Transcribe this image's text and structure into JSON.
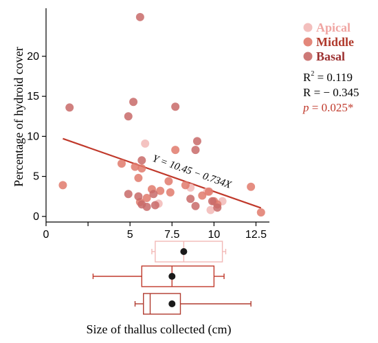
{
  "chart_data": {
    "type": "scatter",
    "xlabel": "Size of thallus collected (cm)",
    "ylabel": "Percentage of hydroid cover",
    "xlim": [
      0,
      13.3
    ],
    "ylim": [
      -0.7,
      26
    ],
    "xticks": [
      0,
      2.5,
      5,
      7.5,
      10,
      12.5
    ],
    "xtick_labels": [
      "0",
      "",
      "5",
      "7.5",
      "10",
      "12.5"
    ],
    "yticks": [
      0,
      5,
      10,
      15,
      20
    ],
    "grid": false,
    "legend_position": "top-right",
    "series": [
      {
        "name": "Apical",
        "color": "#f2b8b6",
        "points": [
          [
            5.9,
            9.1
          ],
          [
            6.7,
            1.6
          ],
          [
            9.8,
            0.8
          ],
          [
            10.5,
            1.9
          ],
          [
            9.6,
            3.1
          ],
          [
            8.6,
            3.6
          ]
        ]
      },
      {
        "name": "Middle",
        "color": "#e07a6c",
        "points": [
          [
            1.0,
            3.9
          ],
          [
            4.5,
            6.6
          ],
          [
            5.3,
            6.2
          ],
          [
            5.5,
            4.8
          ],
          [
            5.6,
            1.8
          ],
          [
            6.0,
            2.3
          ],
          [
            6.3,
            3.4
          ],
          [
            6.8,
            3.2
          ],
          [
            7.3,
            4.4
          ],
          [
            7.7,
            8.3
          ],
          [
            8.3,
            3.9
          ],
          [
            9.3,
            2.6
          ],
          [
            9.7,
            3.1
          ],
          [
            10.0,
            1.9
          ],
          [
            10.2,
            1.5
          ],
          [
            12.2,
            3.7
          ],
          [
            12.8,
            0.5
          ],
          [
            5.7,
            6.0
          ],
          [
            7.4,
            3.0
          ]
        ]
      },
      {
        "name": "Basal",
        "color": "#c86a68",
        "points": [
          [
            1.4,
            13.6
          ],
          [
            5.6,
            24.9
          ],
          [
            5.2,
            14.3
          ],
          [
            4.9,
            12.5
          ],
          [
            7.7,
            13.7
          ],
          [
            9.0,
            9.4
          ],
          [
            8.9,
            8.3
          ],
          [
            5.7,
            7.0
          ],
          [
            4.9,
            2.8
          ],
          [
            5.5,
            2.5
          ],
          [
            5.7,
            1.5
          ],
          [
            6.0,
            1.2
          ],
          [
            6.5,
            1.4
          ],
          [
            6.4,
            2.8
          ],
          [
            8.6,
            2.2
          ],
          [
            8.9,
            1.3
          ],
          [
            10.2,
            1.1
          ],
          [
            9.9,
            1.9
          ]
        ]
      }
    ],
    "regression": {
      "intercept": 10.45,
      "slope": -0.734,
      "x_range": [
        1.0,
        12.8
      ],
      "color": "#c0392b",
      "equation": "Y = 10.45 − 0.734X"
    },
    "boxplots": [
      {
        "name": "Apical",
        "color": "#f2b8b6",
        "whisker_low": 6.3,
        "q1": 6.5,
        "median": 8.2,
        "q3": 10.5,
        "whisker_high": 10.7,
        "mean": 8.2
      },
      {
        "name": "Middle",
        "color": "#c0392b",
        "whisker_low": 2.8,
        "q1": 5.7,
        "median": 7.5,
        "q3": 10.0,
        "whisker_high": 10.6,
        "mean": 7.5
      },
      {
        "name": "Basal",
        "color": "#b03a2e",
        "whisker_low": 5.3,
        "q1": 5.8,
        "median": 6.2,
        "q3": 8.0,
        "whisker_high": 12.2,
        "mean": 7.5
      }
    ]
  },
  "legend": {
    "items": [
      {
        "label": "Apical",
        "color": "#f2b8b6",
        "text_color": "#f0a6a3"
      },
      {
        "label": "Middle",
        "color": "#e07a6c",
        "text_color": "#b0392b"
      },
      {
        "label": "Basal",
        "color": "#c86a68",
        "text_color": "#9c3030"
      }
    ]
  },
  "stats": {
    "r2_label": "R",
    "r2_sup": "2",
    "r2_value": " = 0.119",
    "r_line": "R  = − 0.345",
    "p_label": "p",
    "p_value": " = 0.025*",
    "p_color": "#c0392b"
  }
}
